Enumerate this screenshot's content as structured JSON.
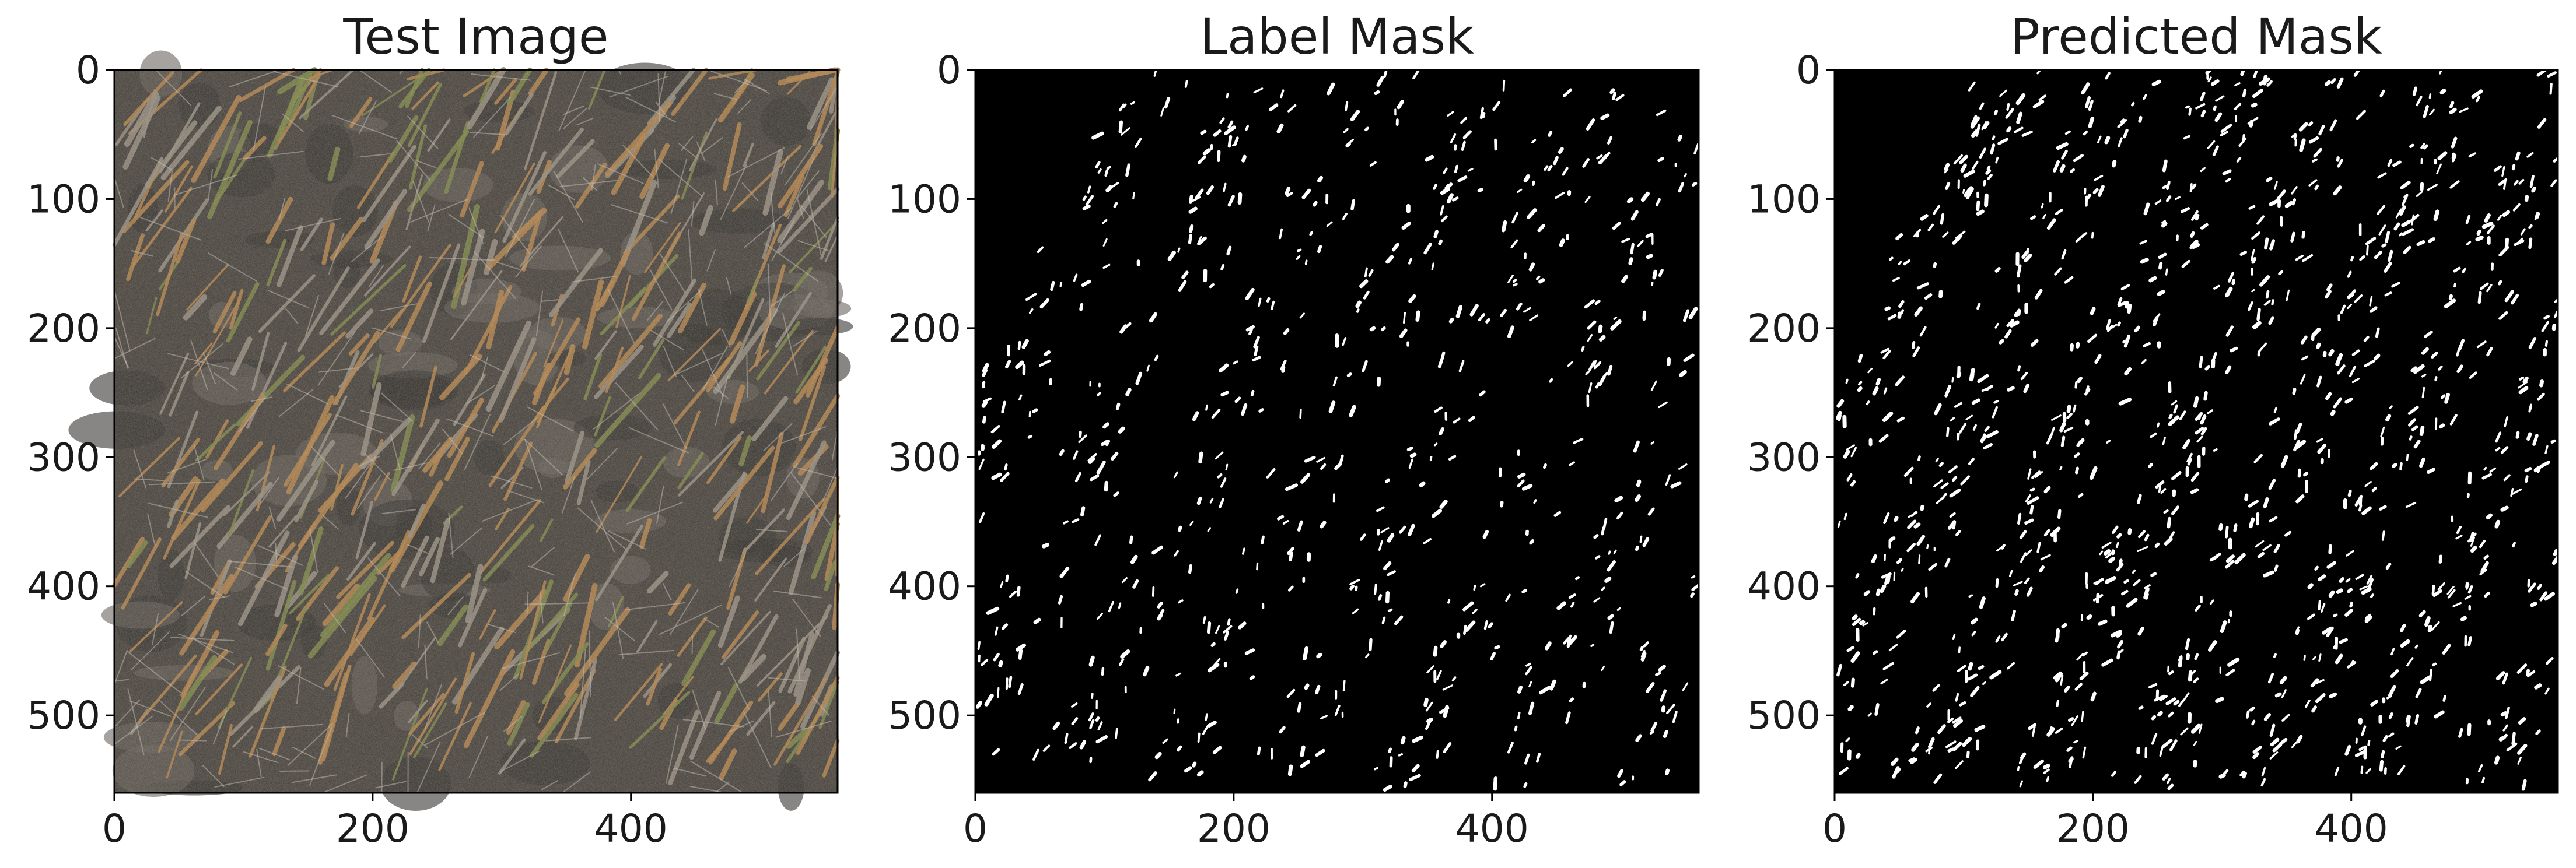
{
  "figure": {
    "panels": [
      {
        "id": "test-image",
        "title": "Test Image",
        "content": "photo",
        "xticks": [
          "0",
          "200",
          "400"
        ],
        "yticks": [
          "0",
          "100",
          "200",
          "300",
          "400",
          "500"
        ]
      },
      {
        "id": "label-mask",
        "title": "Label Mask",
        "content": "mask",
        "xticks": [
          "0",
          "200",
          "400"
        ],
        "yticks": [
          "0",
          "100",
          "200",
          "300",
          "400",
          "500"
        ]
      },
      {
        "id": "predicted-mask",
        "title": "Predicted Mask",
        "content": "mask",
        "xticks": [
          "0",
          "200",
          "400"
        ],
        "yticks": [
          "0",
          "100",
          "200",
          "300",
          "400",
          "500"
        ]
      }
    ],
    "colors": {
      "mask_background": "#000000",
      "mask_foreground": "#ffffff",
      "photo_ground": "#3a3530",
      "photo_stems": "#a8773e",
      "photo_green": "#6f7a3a",
      "axis_frame": "#000000"
    }
  }
}
